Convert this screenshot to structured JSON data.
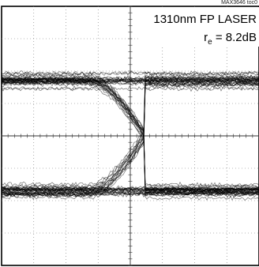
{
  "figure_id": "MAX3646 toc0",
  "chart_data": {
    "type": "eye-diagram",
    "annotation": {
      "line1": "1310nm FP LASER",
      "line2_prefix": "r",
      "line2_sub": "e",
      "line2_suffix": " = 8.2dB"
    },
    "divisions": {
      "horizontal": 8,
      "vertical": 8
    },
    "grid": true,
    "eye": {
      "unit_interval_divisions": 5.8,
      "first_crossing_division": 1.55,
      "levels": [
        {
          "name": "logic-one",
          "value": 1
        },
        {
          "name": "logic-zero",
          "value": 0
        }
      ],
      "noise_ratio": 0.06
    },
    "colors": {
      "trace": "#000000",
      "grid": "#777777",
      "background": "#ffffff"
    }
  }
}
